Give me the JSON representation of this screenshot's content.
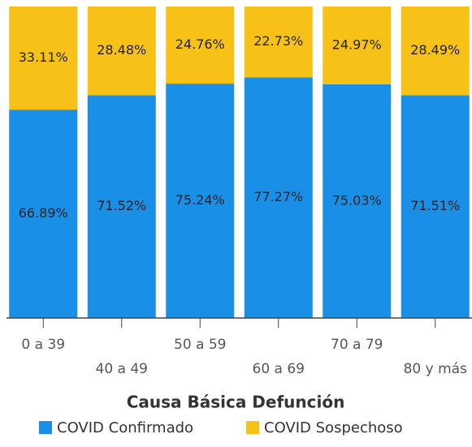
{
  "chart_data": {
    "type": "stacked_bar",
    "title": "Causa Básica Defunción",
    "categories": [
      "0 a 39",
      "40 a 49",
      "50 a 59",
      "60 a 69",
      "70 a 79",
      "80 y más"
    ],
    "series": [
      {
        "name": "COVID Confirmado",
        "color": "#1a8fe8",
        "values": [
          66.89,
          71.52,
          75.24,
          77.27,
          75.03,
          71.51
        ],
        "value_labels": [
          "66.89%",
          "71.52%",
          "75.24%",
          "77.27%",
          "75.03%",
          "71.51%"
        ]
      },
      {
        "name": "COVID Sospechoso",
        "color": "#f8c118",
        "values": [
          33.11,
          28.48,
          24.76,
          22.73,
          24.97,
          28.49
        ],
        "value_labels": [
          "33.11%",
          "28.48%",
          "24.76%",
          "22.73%",
          "24.97%",
          "28.49%"
        ]
      }
    ],
    "ylim": [
      0,
      100
    ]
  }
}
